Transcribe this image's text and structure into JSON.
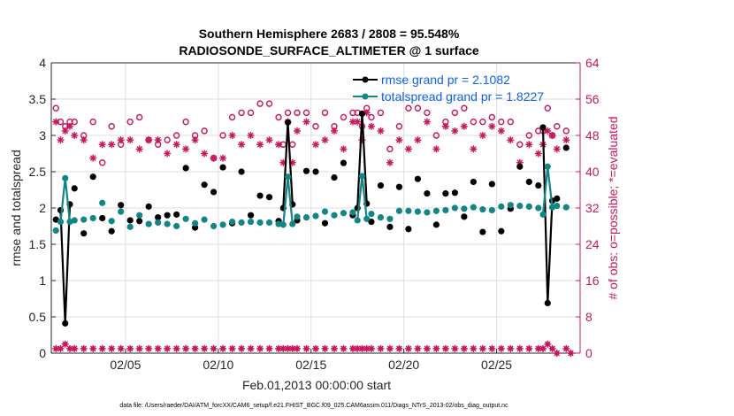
{
  "chart_data": {
    "type": "line",
    "title": "Southern Hemisphere 2683 / 2808 = 95.548%",
    "subtitle": "RADIOSONDE_SURFACE_ALTIMETER @ 1 surface",
    "xlabel": "Feb.01,2013 00:00:00 start",
    "ylabel": "rmse and totalspread",
    "ylabel_right": "# of obs: o=possible; *=evaluated",
    "footnote": "data file: /Users/raeder/DAI/ATM_forcXX/CAM6_setup/f.e21.FHIST_BGC.f09_025.CAM6assim.011/Diags_NTrS_2013-02/obs_diag_output.nc",
    "xlim": [
      1,
      29.5
    ],
    "ylim": [
      0,
      4
    ],
    "ylim_right": [
      0,
      64
    ],
    "x_ticks": [
      5,
      10,
      15,
      20,
      25
    ],
    "x_tick_labels": [
      "02/05",
      "02/10",
      "02/15",
      "02/20",
      "02/25"
    ],
    "y_ticks": [
      0,
      0.5,
      1,
      1.5,
      2,
      2.5,
      3,
      3.5,
      4
    ],
    "y_tick_labels": [
      "0",
      "0.5",
      "1",
      "1.5",
      "2",
      "2.5",
      "3",
      "3.5",
      "4"
    ],
    "y_right_ticks": [
      0,
      8,
      16,
      24,
      32,
      40,
      48,
      56,
      64
    ],
    "y_right_tick_labels": [
      "0",
      "8",
      "16",
      "24",
      "32",
      "40",
      "48",
      "56",
      "64"
    ],
    "legend": {
      "position": "top-right",
      "entries": [
        {
          "label": "rmse grand pr = 2.1082",
          "color": "#000000"
        },
        {
          "label": "totalspread grand pr = 1.8227",
          "color": "#138585"
        }
      ]
    },
    "series": [
      {
        "name": "rmse",
        "color": "#000000",
        "segments": [
          {
            "x": [
              1.5,
              1.75,
              2.0
            ],
            "y": [
              1.97,
              0.41,
              2.05
            ]
          },
          {
            "x": [
              13.5,
              13.75,
              14.0
            ],
            "y": [
              2.0,
              3.18,
              2.05
            ]
          },
          {
            "x": [
              17.5,
              17.75,
              18.0
            ],
            "y": [
              2.0,
              3.3,
              2.06
            ]
          },
          {
            "x": [
              27.5,
              27.75,
              28.0
            ],
            "y": [
              3.11,
              0.69,
              2.1
            ]
          }
        ],
        "points": {
          "x": [
            1.25,
            2.25,
            2.75,
            3.25,
            3.75,
            4.25,
            4.75,
            5.25,
            5.75,
            6.25,
            6.75,
            7.25,
            7.75,
            8.25,
            8.75,
            9.25,
            9.75,
            10.25,
            10.75,
            11.25,
            11.75,
            12.25,
            12.75,
            13.25,
            14.25,
            14.75,
            15.25,
            15.75,
            16.25,
            16.75,
            17.25,
            18.25,
            18.75,
            19.25,
            19.75,
            20.25,
            20.75,
            21.25,
            21.75,
            22.25,
            22.75,
            23.25,
            23.75,
            24.25,
            24.75,
            25.25,
            25.75,
            26.25,
            26.75,
            27.25,
            28.25,
            28.75
          ],
          "y": [
            1.84,
            2.27,
            1.65,
            2.43,
            1.86,
            1.68,
            2.04,
            1.83,
            1.82,
            2.02,
            1.87,
            1.9,
            1.91,
            2.55,
            1.73,
            2.32,
            2.22,
            2.56,
            1.79,
            2.5,
            1.9,
            2.17,
            2.15,
            1.82,
            1.83,
            2.51,
            2.5,
            1.79,
            2.42,
            2.62,
            1.9,
            1.81,
            2.31,
            1.74,
            2.29,
            1.71,
            2.4,
            2.2,
            1.77,
            2.2,
            2.21,
            1.88,
            2.36,
            1.67,
            2.33,
            1.68,
            1.99,
            2.57,
            2.36,
            2.31,
            2.13,
            2.83
          ]
        }
      },
      {
        "name": "totalspread",
        "color": "#138585",
        "segments": [
          {
            "x": [
              1.5,
              1.75,
              2.0
            ],
            "y": [
              1.81,
              2.41,
              1.81
            ]
          },
          {
            "x": [
              13.5,
              13.75,
              14.0
            ],
            "y": [
              1.77,
              2.43,
              1.78
            ]
          },
          {
            "x": [
              17.5,
              17.75,
              18.0
            ],
            "y": [
              1.83,
              2.44,
              1.85
            ]
          },
          {
            "x": [
              27.5,
              27.75,
              28.0
            ],
            "y": [
              1.91,
              2.57,
              2.01
            ]
          }
        ],
        "points": {
          "x": [
            1.25,
            2.25,
            2.75,
            3.25,
            3.75,
            4.25,
            4.75,
            5.25,
            5.75,
            6.25,
            6.75,
            7.25,
            7.75,
            8.25,
            8.75,
            9.25,
            9.75,
            10.25,
            10.75,
            11.25,
            11.75,
            12.25,
            12.75,
            13.25,
            14.25,
            14.75,
            15.25,
            15.75,
            16.25,
            16.75,
            17.25,
            18.25,
            18.75,
            19.25,
            19.75,
            20.25,
            20.75,
            21.25,
            21.75,
            22.25,
            22.75,
            23.25,
            23.75,
            24.25,
            24.75,
            25.25,
            25.75,
            26.25,
            26.75,
            27.25,
            28.25,
            28.75
          ],
          "y": [
            1.69,
            1.83,
            1.84,
            1.86,
            2.07,
            1.82,
            1.95,
            1.74,
            1.9,
            1.78,
            1.8,
            1.78,
            1.75,
            1.85,
            1.79,
            1.84,
            1.75,
            1.77,
            1.81,
            1.8,
            1.81,
            1.8,
            1.8,
            1.78,
            1.88,
            1.87,
            1.89,
            1.95,
            1.9,
            1.93,
            1.94,
            1.92,
            1.87,
            1.85,
            1.96,
            1.96,
            1.95,
            1.94,
            1.96,
            1.97,
            2.0,
            1.99,
            2.01,
            1.98,
            1.97,
            2.02,
            2.04,
            2.03,
            2.02,
            2.0,
            2.03,
            2.01
          ]
        }
      }
    ],
    "possible_counts": {
      "name": "possible",
      "marker": "o",
      "color": "#c8175d",
      "x": [
        1.25,
        1.5,
        1.75,
        2.0,
        2.25,
        2.75,
        3.25,
        3.75,
        4.25,
        4.75,
        5.25,
        5.75,
        6.25,
        6.75,
        7.25,
        7.75,
        8.25,
        8.75,
        9.25,
        9.75,
        10.25,
        10.75,
        11.25,
        11.75,
        12.25,
        12.75,
        13.25,
        13.5,
        13.75,
        14.0,
        14.25,
        14.75,
        15.25,
        15.75,
        16.25,
        16.75,
        17.25,
        17.5,
        17.75,
        18.0,
        18.25,
        18.75,
        19.25,
        19.75,
        20.25,
        20.75,
        21.25,
        21.75,
        22.25,
        22.75,
        23.25,
        23.75,
        24.25,
        24.75,
        25.25,
        25.75,
        26.25,
        26.75,
        27.25,
        27.5,
        27.75,
        28.0,
        28.25,
        28.75
      ],
      "y": [
        54,
        51,
        50,
        51,
        51,
        48,
        51,
        42,
        50,
        46,
        51,
        52,
        47,
        46,
        47,
        48,
        51,
        48,
        49,
        43,
        48,
        52,
        53,
        53,
        55,
        55,
        52,
        46,
        53,
        46,
        53,
        53,
        50,
        53,
        50,
        52,
        53,
        53,
        50,
        54,
        52,
        53,
        45,
        50,
        54,
        54,
        53,
        48,
        51,
        53,
        54,
        51,
        51,
        52,
        51,
        51,
        46,
        48,
        49,
        49,
        54,
        48,
        50,
        49
      ]
    },
    "evaluated_counts": {
      "name": "evaluated",
      "marker": "*",
      "color": "#c8175d",
      "x": [
        1.25,
        1.5,
        1.75,
        2.0,
        2.25,
        2.75,
        3.25,
        3.75,
        4.25,
        4.75,
        5.25,
        5.75,
        6.25,
        6.75,
        7.25,
        7.75,
        8.25,
        8.75,
        9.25,
        9.75,
        10.25,
        10.75,
        11.25,
        11.75,
        12.25,
        12.75,
        13.25,
        13.5,
        13.75,
        14.0,
        14.25,
        14.75,
        15.25,
        15.75,
        16.25,
        16.75,
        17.25,
        17.5,
        17.75,
        18.0,
        18.25,
        18.75,
        19.25,
        19.75,
        20.25,
        20.75,
        21.25,
        21.75,
        22.25,
        22.75,
        23.25,
        23.75,
        24.25,
        24.75,
        25.25,
        25.75,
        26.25,
        26.75,
        27.25,
        27.5,
        27.75,
        28.0,
        28.25,
        28.75
      ],
      "y": [
        51,
        47,
        49,
        50,
        48,
        47,
        43,
        46,
        46,
        47,
        47,
        45,
        47,
        47,
        44,
        46,
        45,
        47,
        44,
        43,
        43,
        48,
        46,
        48,
        46,
        47,
        46,
        42,
        51,
        42,
        49,
        51,
        46,
        47,
        49,
        45,
        51,
        51,
        47,
        53,
        50,
        49,
        42,
        47,
        45,
        47,
        51,
        45,
        50,
        49,
        50,
        45,
        48,
        50,
        49,
        47,
        42,
        46,
        44,
        46,
        49,
        48,
        45,
        47
      ]
    },
    "baseline_counts": {
      "name": "low-count markers",
      "color": "#c8175d",
      "x": [
        1.25,
        1.5,
        1.75,
        2.0,
        2.25,
        2.75,
        3.25,
        3.75,
        4.25,
        4.75,
        5.25,
        5.75,
        6.25,
        6.75,
        7.25,
        7.75,
        8.25,
        8.75,
        9.25,
        9.75,
        10.25,
        10.75,
        11.25,
        11.75,
        12.25,
        12.75,
        13.25,
        13.5,
        13.75,
        14.0,
        14.25,
        14.75,
        15.25,
        15.75,
        16.25,
        16.75,
        17.25,
        17.5,
        17.75,
        18.0,
        18.25,
        18.75,
        19.25,
        19.75,
        20.25,
        20.75,
        21.25,
        21.75,
        22.25,
        22.75,
        23.25,
        23.75,
        24.25,
        24.75,
        25.25,
        25.75,
        26.25,
        26.75,
        27.25,
        27.5,
        27.75,
        28.0,
        28.25,
        28.75,
        29.0
      ],
      "y": [
        1,
        1,
        2,
        1,
        1,
        1,
        1,
        1,
        1,
        1,
        1,
        1,
        1,
        1,
        1,
        1,
        1,
        1,
        1,
        1,
        1,
        1,
        1,
        1,
        1,
        1,
        1,
        1,
        1,
        1,
        1,
        1,
        1,
        1,
        1,
        1,
        1,
        1,
        1,
        1,
        1,
        1,
        1,
        1,
        1,
        1,
        1,
        1,
        1,
        1,
        1,
        1,
        1,
        1,
        1,
        1,
        1,
        1,
        1,
        1,
        2,
        1,
        0,
        1,
        0
      ]
    }
  }
}
